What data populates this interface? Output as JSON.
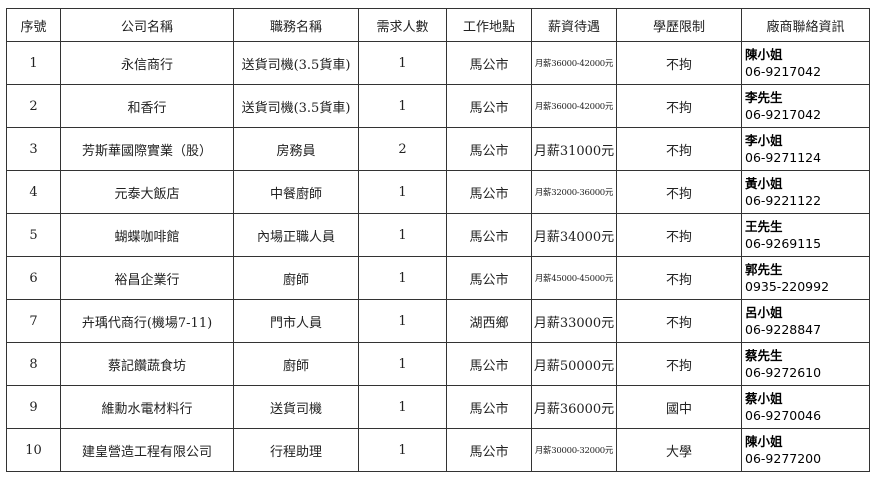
{
  "headers": [
    "序號",
    "公司名稱",
    "職務名稱",
    "需求人數",
    "工作地點",
    "薪資待遇",
    "學歷限制",
    "廠商聯絡資訊"
  ],
  "rows": [
    {
      "no": "1",
      "company": "永信商行",
      "job": "送貨司機(3.5貨車)",
      "count": "1",
      "location": "馬公市",
      "salary": "月薪36000-42000元",
      "education": "不拘",
      "contact_name": "陳小姐",
      "contact_phone": "06-9217042"
    },
    {
      "no": "2",
      "company": "和香行",
      "job": "送貨司機(3.5貨車)",
      "count": "1",
      "location": "馬公市",
      "salary": "月薪36000-42000元",
      "education": "不拘",
      "contact_name": "李先生",
      "contact_phone": "06-9217042"
    },
    {
      "no": "3",
      "company": "芳斯華國際實業（股）",
      "job": "房務員",
      "count": "2",
      "location": "馬公市",
      "salary": "月薪31000元",
      "education": "不拘",
      "contact_name": "李小姐",
      "contact_phone": "06-9271124"
    },
    {
      "no": "4",
      "company": "元泰大飯店",
      "job": "中餐廚師",
      "count": "1",
      "location": "馬公市",
      "salary": "月薪32000-36000元",
      "education": "不拘",
      "contact_name": "黃小姐",
      "contact_phone": "06-9221122"
    },
    {
      "no": "5",
      "company": "蝴蝶咖啡館",
      "job": "內場正職人員",
      "count": "1",
      "location": "馬公市",
      "salary": "月薪34000元",
      "education": "不拘",
      "contact_name": "王先生",
      "contact_phone": "06-9269115"
    },
    {
      "no": "6",
      "company": "裕昌企業行",
      "job": "廚師",
      "count": "1",
      "location": "馬公市",
      "salary": "月薪45000-45000元",
      "education": "不拘",
      "contact_name": "郭先生",
      "contact_phone": "0935-220992"
    },
    {
      "no": "7",
      "company": "卉瑀代商行(機場7-11)",
      "job": "門市人員",
      "count": "1",
      "location": "湖西鄉",
      "salary": "月薪33000元",
      "education": "不拘",
      "contact_name": "呂小姐",
      "contact_phone": "06-9228847"
    },
    {
      "no": "8",
      "company": "蔡記饡蔬食坊",
      "job": "廚師",
      "count": "1",
      "location": "馬公市",
      "salary": "月薪50000元",
      "education": "不拘",
      "contact_name": "蔡先生",
      "contact_phone": "06-9272610"
    },
    {
      "no": "9",
      "company": "維勳水電材料行",
      "job": "送貨司機",
      "count": "1",
      "location": "馬公市",
      "salary": "月薪36000元",
      "education": "國中",
      "contact_name": "蔡小姐",
      "contact_phone": "06-9270046"
    },
    {
      "no": "10",
      "company": "建皇營造工程有限公司",
      "job": "行程助理",
      "count": "1",
      "location": "馬公市",
      "salary": "月薪30000-32000元",
      "education": "大學",
      "contact_name": "陳小姐",
      "contact_phone": "06-9277200"
    }
  ]
}
